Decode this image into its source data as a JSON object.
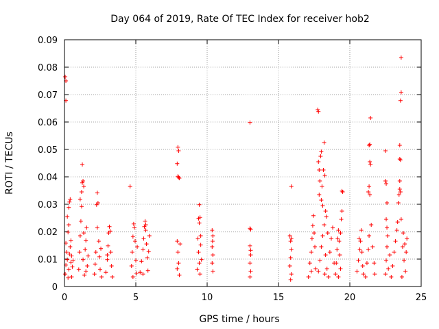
{
  "chart_data": {
    "type": "scatter",
    "title": "Day 064 of 2019, Rate Of TEC Index for receiver hob2",
    "xlabel": "GPS time / hours",
    "ylabel": "ROTI / TECUs",
    "xlim": [
      0,
      25
    ],
    "ylim": [
      0,
      0.09
    ],
    "xticks": [
      0,
      5,
      10,
      15,
      20,
      25
    ],
    "xtick_labels": [
      "0",
      "5",
      "10",
      "15",
      "20",
      "25"
    ],
    "yticks": [
      0,
      0.01,
      0.02,
      0.03,
      0.04,
      0.05,
      0.06,
      0.07,
      0.08,
      0.09
    ],
    "ytick_labels": [
      "0",
      "0.01",
      "0.02",
      "0.03",
      "0.04",
      "0.05",
      "0.06",
      "0.07",
      "0.08",
      "0.09"
    ],
    "grid": true,
    "marker": "+",
    "color": "#ff0000",
    "series": [
      {
        "name": "ROTI",
        "points": [
          [
            0.05,
            0.0765
          ],
          [
            0.1,
            0.075
          ],
          [
            0.1,
            0.0678
          ],
          [
            0.05,
            0.0045
          ],
          [
            0.1,
            0.0078
          ],
          [
            0.15,
            0.0125
          ],
          [
            0.2,
            0.0098
          ],
          [
            0.1,
            0.0158
          ],
          [
            0.25,
            0.0032
          ],
          [
            0.3,
            0.0062
          ],
          [
            0.35,
            0.0118
          ],
          [
            0.2,
            0.0255
          ],
          [
            0.3,
            0.0288
          ],
          [
            0.35,
            0.0308
          ],
          [
            0.4,
            0.0318
          ],
          [
            0.25,
            0.0198
          ],
          [
            0.4,
            0.0145
          ],
          [
            0.45,
            0.0088
          ],
          [
            0.5,
            0.0035
          ],
          [
            0.55,
            0.0072
          ],
          [
            0.5,
            0.0112
          ],
          [
            0.45,
            0.0168
          ],
          [
            0.6,
            0.0095
          ],
          [
            0.3,
            0.0225
          ],
          [
            1.0,
            0.0062
          ],
          [
            1.05,
            0.0125
          ],
          [
            1.1,
            0.0185
          ],
          [
            1.15,
            0.0238
          ],
          [
            1.2,
            0.0345
          ],
          [
            1.25,
            0.0378
          ],
          [
            1.3,
            0.0385
          ],
          [
            1.35,
            0.0365
          ],
          [
            1.25,
            0.0445
          ],
          [
            1.1,
            0.0318
          ],
          [
            1.2,
            0.0292
          ],
          [
            1.3,
            0.0098
          ],
          [
            1.4,
            0.0042
          ],
          [
            1.45,
            0.0135
          ],
          [
            1.5,
            0.0168
          ],
          [
            1.55,
            0.0215
          ],
          [
            1.6,
            0.0075
          ],
          [
            1.65,
            0.0112
          ],
          [
            1.35,
            0.0195
          ],
          [
            1.5,
            0.0055
          ],
          [
            2.1,
            0.0045
          ],
          [
            2.15,
            0.0082
          ],
          [
            2.2,
            0.0125
          ],
          [
            2.25,
            0.0298
          ],
          [
            2.3,
            0.0342
          ],
          [
            2.35,
            0.0305
          ],
          [
            2.4,
            0.0165
          ],
          [
            2.45,
            0.0108
          ],
          [
            2.5,
            0.0062
          ],
          [
            2.55,
            0.0138
          ],
          [
            2.3,
            0.0215
          ],
          [
            2.6,
            0.0035
          ],
          [
            2.9,
            0.0052
          ],
          [
            3.0,
            0.0098
          ],
          [
            3.05,
            0.0148
          ],
          [
            3.1,
            0.0195
          ],
          [
            3.15,
            0.0218
          ],
          [
            3.2,
            0.0202
          ],
          [
            3.25,
            0.0125
          ],
          [
            3.3,
            0.0075
          ],
          [
            3.35,
            0.0035
          ],
          [
            3.0,
            0.0115
          ],
          [
            4.6,
            0.0365
          ],
          [
            4.7,
            0.0075
          ],
          [
            4.75,
            0.0125
          ],
          [
            4.8,
            0.0182
          ],
          [
            4.85,
            0.0228
          ],
          [
            4.9,
            0.0215
          ],
          [
            4.95,
            0.0165
          ],
          [
            5.0,
            0.0095
          ],
          [
            5.05,
            0.0048
          ],
          [
            5.1,
            0.0145
          ],
          [
            4.8,
            0.0035
          ],
          [
            5.3,
            0.0052
          ],
          [
            5.4,
            0.0092
          ],
          [
            5.5,
            0.0135
          ],
          [
            5.55,
            0.0175
          ],
          [
            5.6,
            0.0218
          ],
          [
            5.65,
            0.0238
          ],
          [
            5.7,
            0.0205
          ],
          [
            5.75,
            0.0155
          ],
          [
            5.8,
            0.0105
          ],
          [
            5.85,
            0.0058
          ],
          [
            5.9,
            0.0128
          ],
          [
            5.95,
            0.0185
          ],
          [
            5.5,
            0.0045
          ],
          [
            5.7,
            0.0225
          ],
          [
            7.95,
            0.0508
          ],
          [
            8.0,
            0.0495
          ],
          [
            7.9,
            0.0448
          ],
          [
            8.0,
            0.0398
          ],
          [
            8.05,
            0.0395
          ],
          [
            7.95,
            0.0402
          ],
          [
            7.9,
            0.0165
          ],
          [
            7.95,
            0.0125
          ],
          [
            8.0,
            0.0085
          ],
          [
            8.05,
            0.0042
          ],
          [
            8.1,
            0.0155
          ],
          [
            7.9,
            0.0065
          ],
          [
            9.45,
            0.0298
          ],
          [
            9.4,
            0.0248
          ],
          [
            9.45,
            0.0232
          ],
          [
            9.5,
            0.0252
          ],
          [
            9.35,
            0.0175
          ],
          [
            9.4,
            0.0125
          ],
          [
            9.45,
            0.0085
          ],
          [
            9.5,
            0.0045
          ],
          [
            9.55,
            0.0152
          ],
          [
            9.6,
            0.0098
          ],
          [
            9.3,
            0.0062
          ],
          [
            9.55,
            0.0185
          ],
          [
            10.35,
            0.0205
          ],
          [
            10.4,
            0.0185
          ],
          [
            10.35,
            0.0145
          ],
          [
            10.4,
            0.0115
          ],
          [
            10.35,
            0.0085
          ],
          [
            10.4,
            0.0055
          ],
          [
            10.38,
            0.0165
          ],
          [
            13.0,
            0.0598
          ],
          [
            13.0,
            0.0212
          ],
          [
            13.05,
            0.0208
          ],
          [
            13.0,
            0.0148
          ],
          [
            13.05,
            0.0115
          ],
          [
            13.0,
            0.0085
          ],
          [
            13.05,
            0.0055
          ],
          [
            13.0,
            0.0035
          ],
          [
            13.05,
            0.0132
          ],
          [
            15.9,
            0.0365
          ],
          [
            15.8,
            0.0185
          ],
          [
            15.85,
            0.0165
          ],
          [
            15.9,
            0.0135
          ],
          [
            15.85,
            0.0105
          ],
          [
            15.8,
            0.0075
          ],
          [
            15.9,
            0.0045
          ],
          [
            15.85,
            0.0025
          ],
          [
            15.9,
            0.0175
          ],
          [
            17.1,
            0.0035
          ],
          [
            17.2,
            0.0085
          ],
          [
            17.3,
            0.0125
          ],
          [
            17.35,
            0.0175
          ],
          [
            17.4,
            0.0222
          ],
          [
            17.45,
            0.0258
          ],
          [
            17.5,
            0.0195
          ],
          [
            17.55,
            0.0145
          ],
          [
            17.6,
            0.0065
          ],
          [
            17.3,
            0.0055
          ],
          [
            17.75,
            0.0645
          ],
          [
            17.8,
            0.0638
          ],
          [
            17.8,
            0.0455
          ],
          [
            17.85,
            0.0425
          ],
          [
            17.9,
            0.0385
          ],
          [
            17.95,
            0.0475
          ],
          [
            18.0,
            0.0492
          ],
          [
            18.05,
            0.0365
          ],
          [
            18.1,
            0.0295
          ],
          [
            18.15,
            0.0425
          ],
          [
            18.2,
            0.0525
          ],
          [
            18.25,
            0.0405
          ],
          [
            18.3,
            0.0275
          ],
          [
            18.35,
            0.0255
          ],
          [
            17.85,
            0.0335
          ],
          [
            18.0,
            0.0315
          ],
          [
            17.8,
            0.0055
          ],
          [
            17.9,
            0.0095
          ],
          [
            18.0,
            0.0145
          ],
          [
            18.1,
            0.0185
          ],
          [
            18.2,
            0.0225
          ],
          [
            18.3,
            0.0115
          ],
          [
            18.4,
            0.0065
          ],
          [
            18.5,
            0.0035
          ],
          [
            18.6,
            0.0125
          ],
          [
            18.7,
            0.0175
          ],
          [
            18.8,
            0.0215
          ],
          [
            18.9,
            0.0085
          ],
          [
            18.45,
            0.0195
          ],
          [
            18.25,
            0.0045
          ],
          [
            19.0,
            0.0045
          ],
          [
            19.05,
            0.0085
          ],
          [
            19.1,
            0.0135
          ],
          [
            19.15,
            0.0175
          ],
          [
            19.2,
            0.0205
          ],
          [
            19.25,
            0.0165
          ],
          [
            19.3,
            0.0115
          ],
          [
            19.35,
            0.0065
          ],
          [
            19.4,
            0.0245
          ],
          [
            19.45,
            0.0275
          ],
          [
            19.45,
            0.0348
          ],
          [
            19.5,
            0.0345
          ],
          [
            19.2,
            0.0035
          ],
          [
            19.35,
            0.0195
          ],
          [
            20.5,
            0.0055
          ],
          [
            20.6,
            0.0095
          ],
          [
            20.7,
            0.0135
          ],
          [
            20.75,
            0.0165
          ],
          [
            20.8,
            0.0205
          ],
          [
            20.85,
            0.0125
          ],
          [
            20.9,
            0.0075
          ],
          [
            20.95,
            0.0045
          ],
          [
            20.65,
            0.0175
          ],
          [
            21.1,
            0.0035
          ],
          [
            21.2,
            0.0085
          ],
          [
            21.3,
            0.0135
          ],
          [
            21.35,
            0.0185
          ],
          [
            21.3,
            0.0345
          ],
          [
            21.35,
            0.0365
          ],
          [
            21.4,
            0.0455
          ],
          [
            21.45,
            0.0445
          ],
          [
            21.35,
            0.0515
          ],
          [
            21.4,
            0.0518
          ],
          [
            21.45,
            0.0615
          ],
          [
            21.4,
            0.0335
          ],
          [
            21.5,
            0.0225
          ],
          [
            21.6,
            0.0145
          ],
          [
            21.7,
            0.0085
          ],
          [
            21.75,
            0.0045
          ],
          [
            22.5,
            0.0495
          ],
          [
            22.5,
            0.0385
          ],
          [
            22.55,
            0.0375
          ],
          [
            22.6,
            0.0305
          ],
          [
            22.55,
            0.0245
          ],
          [
            22.6,
            0.0215
          ],
          [
            22.5,
            0.0045
          ],
          [
            22.55,
            0.0095
          ],
          [
            22.6,
            0.0145
          ],
          [
            22.65,
            0.0185
          ],
          [
            22.7,
            0.0065
          ],
          [
            22.8,
            0.0115
          ],
          [
            22.9,
            0.0035
          ],
          [
            23.0,
            0.0075
          ],
          [
            23.1,
            0.0125
          ],
          [
            23.2,
            0.0165
          ],
          [
            23.3,
            0.0205
          ],
          [
            23.35,
            0.0235
          ],
          [
            23.4,
            0.0305
          ],
          [
            23.45,
            0.0335
          ],
          [
            23.5,
            0.0355
          ],
          [
            23.5,
            0.0385
          ],
          [
            23.55,
            0.0345
          ],
          [
            23.5,
            0.0465
          ],
          [
            23.55,
            0.0462
          ],
          [
            23.5,
            0.0515
          ],
          [
            23.55,
            0.0678
          ],
          [
            23.6,
            0.0708
          ],
          [
            23.6,
            0.0835
          ],
          [
            23.6,
            0.0245
          ],
          [
            23.7,
            0.0145
          ],
          [
            23.8,
            0.0095
          ],
          [
            23.9,
            0.0055
          ],
          [
            23.95,
            0.0125
          ],
          [
            24.0,
            0.0175
          ],
          [
            23.75,
            0.0195
          ],
          [
            23.65,
            0.0035
          ],
          [
            23.85,
            0.0155
          ]
        ]
      }
    ]
  }
}
